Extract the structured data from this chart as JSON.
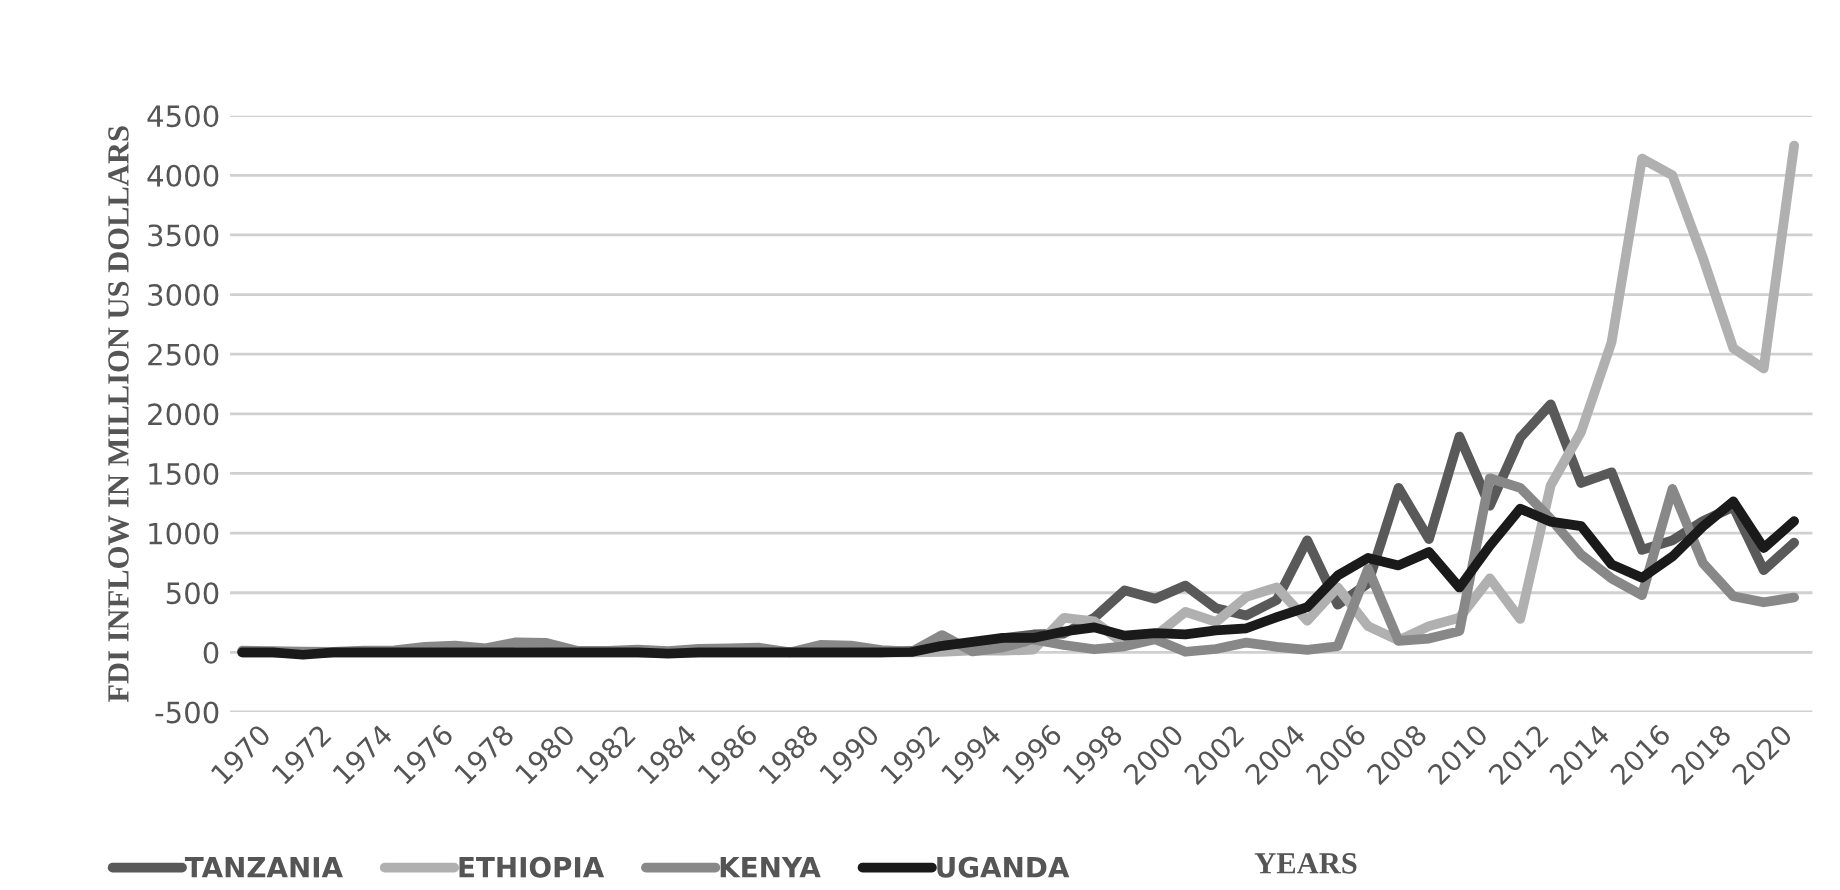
{
  "chart_data": {
    "type": "line",
    "xlabel": "YEARS",
    "ylabel": "FDI INFLOW IN MILLION US DOLLARS",
    "x": [
      1970,
      1971,
      1972,
      1973,
      1974,
      1975,
      1976,
      1977,
      1978,
      1979,
      1980,
      1981,
      1982,
      1983,
      1984,
      1985,
      1986,
      1987,
      1988,
      1989,
      1990,
      1991,
      1992,
      1993,
      1994,
      1995,
      1996,
      1997,
      1998,
      1999,
      2000,
      2001,
      2002,
      2003,
      2004,
      2005,
      2006,
      2007,
      2008,
      2009,
      2010,
      2011,
      2012,
      2013,
      2014,
      2015,
      2016,
      2017,
      2018,
      2019,
      2020,
      2021
    ],
    "series": [
      {
        "name": "TANZANIA",
        "color": "#595959",
        "values": [
          0,
          0,
          0,
          0,
          0,
          0,
          0,
          0,
          0,
          0,
          0,
          0,
          0,
          0,
          0,
          0,
          0,
          0,
          0,
          0,
          0,
          0,
          12,
          20,
          50,
          120,
          150,
          158,
          290,
          520,
          450,
          560,
          370,
          310,
          440,
          940,
          400,
          580,
          1380,
          950,
          1810,
          1230,
          1800,
          2080,
          1420,
          1510,
          860,
          940,
          1100,
          1220,
          690,
          920
        ]
      },
      {
        "name": "ETHIOPIA",
        "color": "#b0b0b0",
        "values": [
          0,
          0,
          0,
          0,
          0,
          0,
          0,
          0,
          0,
          0,
          0,
          0,
          0,
          0,
          0,
          0,
          0,
          0,
          0,
          0,
          0,
          0,
          0,
          3,
          17,
          14,
          22,
          290,
          260,
          70,
          135,
          340,
          255,
          465,
          545,
          265,
          545,
          220,
          100,
          220,
          290,
          620,
          280,
          1400,
          1850,
          2600,
          4140,
          4000,
          3310,
          2550,
          2380,
          4250
        ]
      },
      {
        "name": "KENYA",
        "color": "#888888",
        "values": [
          14,
          10,
          7,
          5,
          15,
          17,
          46,
          57,
          34,
          84,
          79,
          14,
          13,
          24,
          11,
          29,
          33,
          39,
          0,
          62,
          57,
          19,
          6,
          145,
          8,
          42,
          109,
          62,
          26,
          51,
          110,
          5,
          28,
          82,
          46,
          21,
          51,
          700,
          96,
          116,
          178,
          1460,
          1380,
          1120,
          820,
          620,
          480,
          1370,
          750,
          470,
          420,
          460
        ]
      },
      {
        "name": "UGANDA",
        "color": "#1a1a1a",
        "values": [
          0,
          0,
          -20,
          0,
          0,
          0,
          0,
          0,
          0,
          0,
          0,
          0,
          0,
          0,
          -10,
          0,
          0,
          0,
          0,
          0,
          0,
          0,
          3,
          55,
          88,
          121,
          121,
          175,
          210,
          140,
          161,
          151,
          185,
          202,
          295,
          380,
          644,
          792,
          729,
          842,
          544,
          894,
          1205,
          1096,
          1059,
          738,
          626,
          803,
          1055,
          1266,
          875,
          1100
        ]
      }
    ],
    "xlim": [
      1969.6,
      2021.6
    ],
    "xticks": [
      1970,
      1972,
      1974,
      1976,
      1978,
      1980,
      1982,
      1984,
      1986,
      1988,
      1990,
      1992,
      1994,
      1996,
      1998,
      2000,
      2002,
      2004,
      2006,
      2008,
      2010,
      2012,
      2014,
      2016,
      2018,
      2020
    ],
    "ylim": [
      -500,
      4500
    ],
    "yticks": [
      -500,
      0,
      500,
      1000,
      1500,
      2000,
      2500,
      3000,
      3500,
      4000,
      4500
    ],
    "grid": "y",
    "legend": "bottom",
    "marker": "none",
    "line_style": "solid"
  }
}
